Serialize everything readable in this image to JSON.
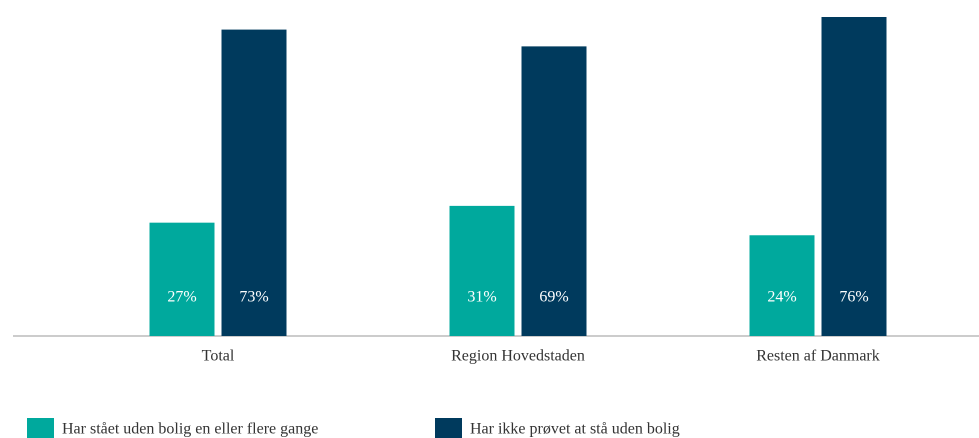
{
  "chart_data": {
    "type": "bar",
    "categories": [
      "Total",
      "Region Hovedstaden",
      "Resten af Danmark"
    ],
    "series": [
      {
        "name": "Har stået uden bolig en eller flere gange",
        "color": "#00a99d",
        "values": [
          27,
          31,
          24
        ],
        "value_labels": [
          "27%",
          "31%",
          "24%"
        ]
      },
      {
        "name": "Har ikke prøvet at stå uden bolig",
        "color": "#003a5d",
        "values": [
          73,
          69,
          76
        ],
        "value_labels": [
          "73%",
          "69%",
          "76%"
        ]
      }
    ]
  }
}
